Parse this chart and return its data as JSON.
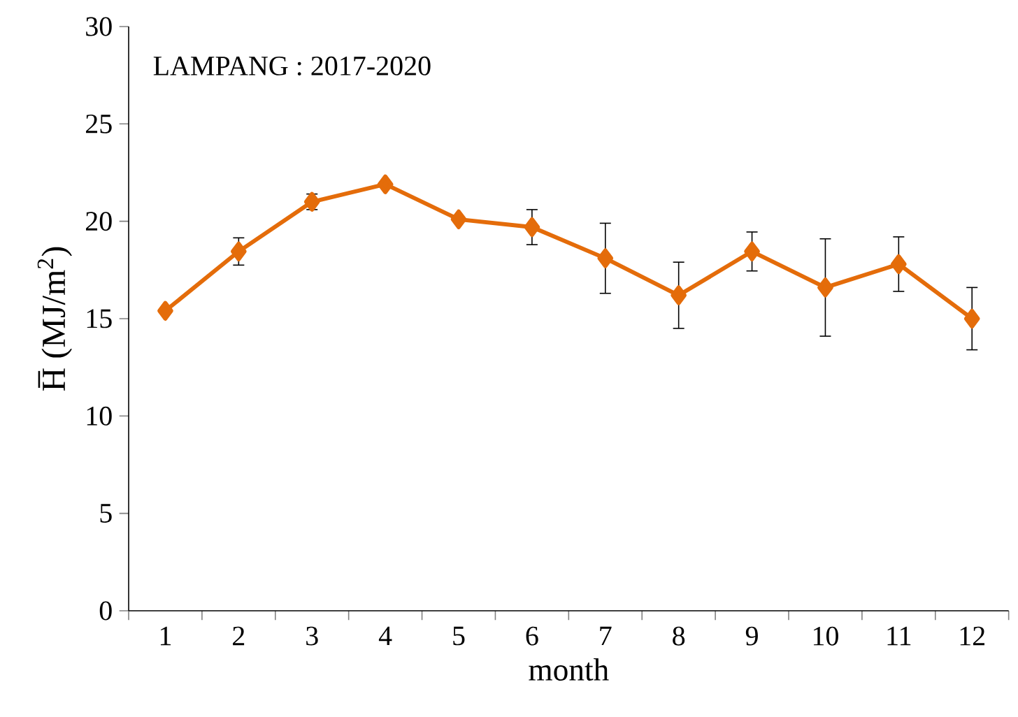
{
  "chart_data": {
    "type": "line",
    "xlabel": "month",
    "ylabel": "H̅ (MJ/m$^{2}$)",
    "categories": [
      "1",
      "2",
      "3",
      "4",
      "5",
      "6",
      "7",
      "8",
      "9",
      "10",
      "11",
      "12"
    ],
    "series": [
      {
        "color": "#e46c0a",
        "values": [
          15.4,
          18.45,
          21.0,
          21.9,
          20.1,
          19.7,
          18.1,
          16.2,
          18.45,
          16.6,
          17.8,
          15.0
        ],
        "errors": [
          null,
          0.7,
          0.4,
          null,
          null,
          0.9,
          1.8,
          1.7,
          1.0,
          2.5,
          1.4,
          1.6
        ]
      }
    ],
    "ylim": [
      0,
      30
    ],
    "yticks": [
      0,
      5,
      10,
      15,
      20,
      25,
      30
    ],
    "marker": "diamond",
    "line_style": "solid",
    "annotations": [
      "LAMPANG : 2017-2020"
    ]
  }
}
